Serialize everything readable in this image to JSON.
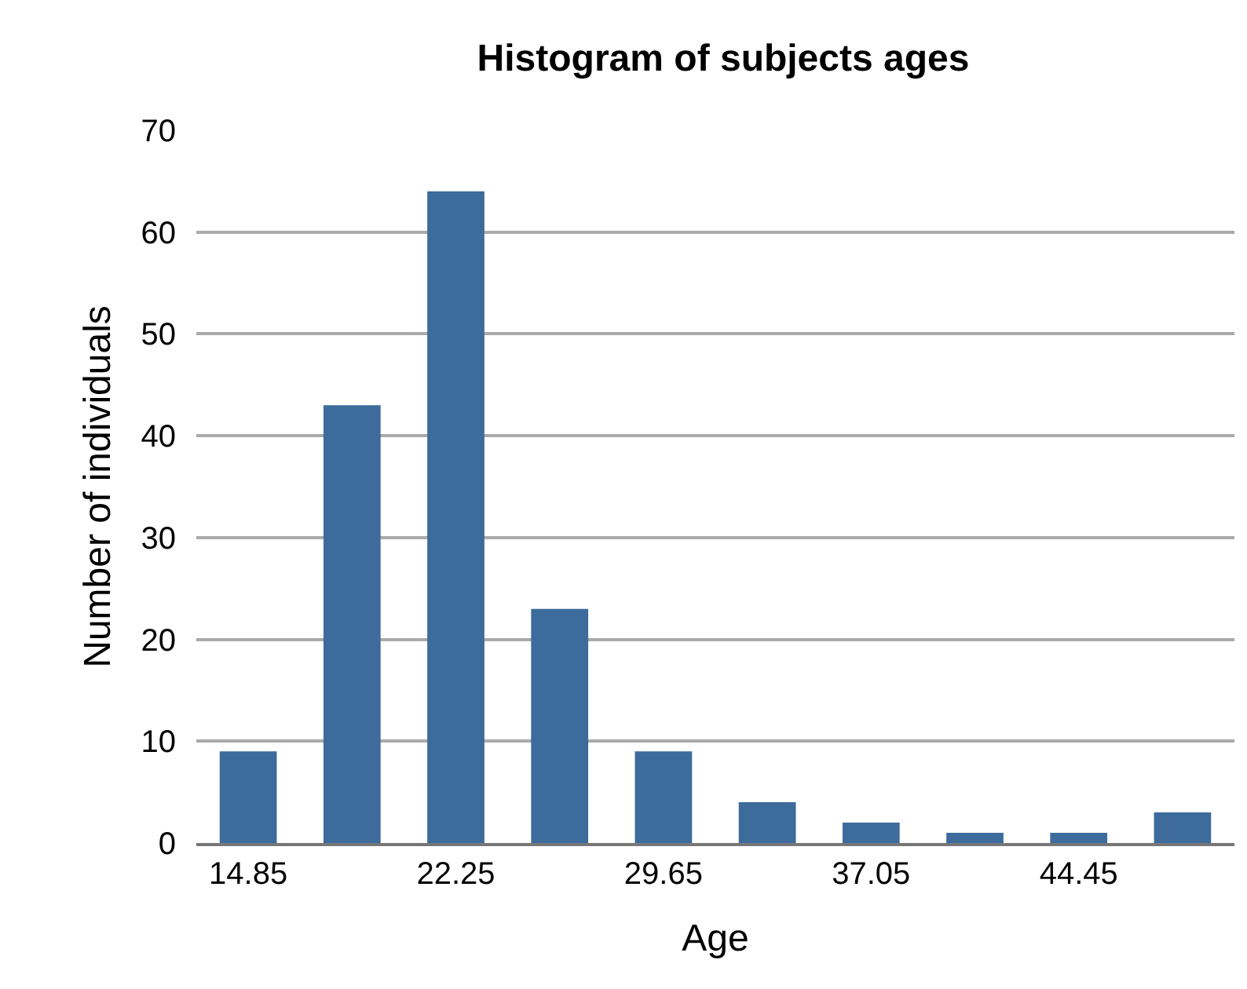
{
  "chart_data": {
    "type": "bar",
    "title": "Histogram of subjects ages",
    "xlabel": "Age",
    "ylabel": "Number of individuals",
    "categories": [
      "14.85",
      null,
      "22.25",
      null,
      "29.65",
      null,
      "37.05",
      null,
      "44.45",
      null
    ],
    "values": [
      9,
      43,
      64,
      23,
      9,
      4,
      2,
      1,
      1,
      3
    ],
    "color": "#3c6b9c",
    "ylim": [
      0,
      70
    ],
    "yticks": [
      0,
      10,
      20,
      30,
      40,
      50,
      60,
      70
    ],
    "grid": "y",
    "legend": false
  }
}
